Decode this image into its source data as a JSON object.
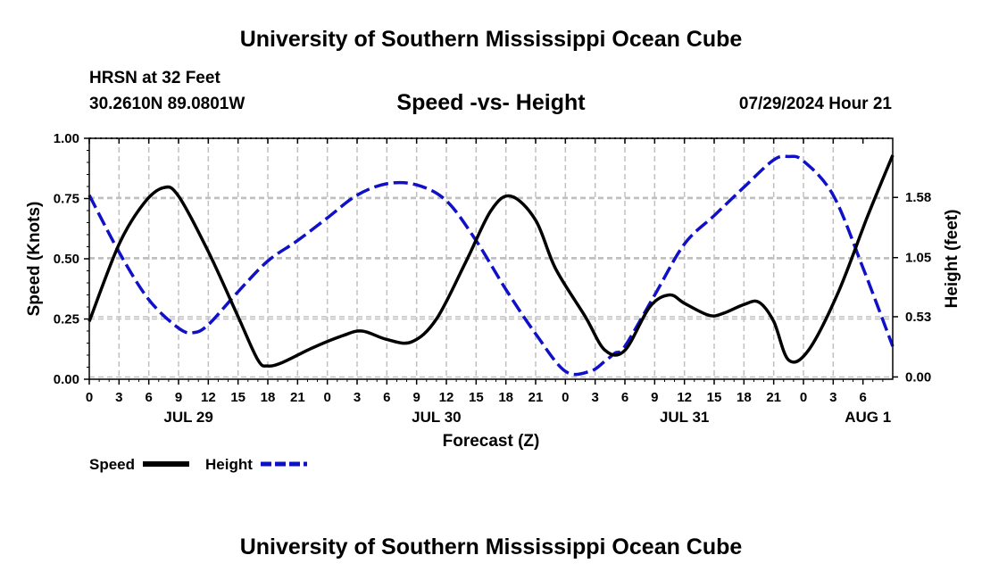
{
  "header": {
    "title": "University of Southern Mississippi Ocean Cube",
    "station": "HRSN at 32 Feet",
    "location": "30.2610N  89.0801W",
    "run_time": "07/29/2024 Hour 21"
  },
  "footer": {
    "title": "University of Southern Mississippi Ocean Cube"
  },
  "colors": {
    "speed": "#000000",
    "height": "#1010c8",
    "grid": "#c0c0c0"
  },
  "chart_data": {
    "type": "line",
    "title": "Speed -vs- Height",
    "xlabel": "Forecast (Z)",
    "ylabel": "Speed (Knots)",
    "y2label": "Height (feet)",
    "x_range_hours": [
      0,
      81
    ],
    "x_tick_step_hours": 3,
    "x_tick_labels": [
      "0",
      "3",
      "6",
      "9",
      "12",
      "15",
      "18",
      "21",
      "0",
      "3",
      "6",
      "9",
      "12",
      "15",
      "18",
      "21",
      "0",
      "3",
      "6",
      "9",
      "12",
      "15",
      "18",
      "21",
      "0",
      "3",
      "6"
    ],
    "day_labels": [
      {
        "label": "JUL 29",
        "hour": 10
      },
      {
        "label": "JUL 30",
        "hour": 35
      },
      {
        "label": "JUL 31",
        "hour": 60
      },
      {
        "label": "AUG 1",
        "hour": 78.5
      }
    ],
    "ylim": [
      0,
      1
    ],
    "y_ticks": [
      0,
      0.25,
      0.5,
      0.75,
      1
    ],
    "y_tick_labels": [
      "0.00",
      "0.25",
      "0.50",
      "0.75",
      "1.00"
    ],
    "y2lim": [
      -0.02,
      2.1
    ],
    "y2_ticks": [
      0,
      0.53,
      1.05,
      1.58
    ],
    "y2_tick_labels": [
      "0.00",
      "0.53",
      "1.05",
      "1.58"
    ],
    "grid": true,
    "series": [
      {
        "name": "Speed",
        "axis": "left",
        "style": "solid",
        "color": "#000000",
        "x": [
          0,
          3,
          5.5,
          7.5,
          9,
          12,
          15,
          17,
          18,
          19.5,
          22.5,
          25.5,
          27.5,
          30,
          32.5,
          35,
          38,
          40.5,
          42.5,
          45,
          47,
          50,
          52,
          54,
          56.5,
          58.5,
          60,
          62.5,
          64,
          66,
          67.5,
          69,
          70.5,
          72.5,
          75.5,
          78.5,
          81
        ],
        "values": [
          0.24,
          0.56,
          0.73,
          0.795,
          0.76,
          0.53,
          0.26,
          0.08,
          0.055,
          0.07,
          0.13,
          0.18,
          0.2,
          0.165,
          0.155,
          0.25,
          0.49,
          0.7,
          0.76,
          0.66,
          0.46,
          0.26,
          0.12,
          0.12,
          0.3,
          0.35,
          0.315,
          0.265,
          0.275,
          0.31,
          0.32,
          0.24,
          0.08,
          0.12,
          0.36,
          0.68,
          0.93
        ]
      },
      {
        "name": "Height",
        "axis": "right",
        "style": "dashed",
        "color": "#1010c8",
        "x": [
          0,
          3,
          6,
          9,
          10.5,
          12,
          15,
          18,
          21,
          24,
          27,
          30,
          33,
          36,
          39,
          42,
          45,
          48,
          50.5,
          52,
          53,
          54,
          57,
          60,
          63,
          66,
          69,
          70.5,
          72,
          75,
          78,
          81
        ],
        "values": [
          1.6,
          1.1,
          0.68,
          0.43,
          0.39,
          0.46,
          0.75,
          1.02,
          1.2,
          1.4,
          1.6,
          1.7,
          1.69,
          1.55,
          1.2,
          0.77,
          0.38,
          0.05,
          0.05,
          0.14,
          0.21,
          0.27,
          0.72,
          1.17,
          1.42,
          1.67,
          1.91,
          1.94,
          1.9,
          1.6,
          0.96,
          0.27
        ]
      }
    ]
  }
}
